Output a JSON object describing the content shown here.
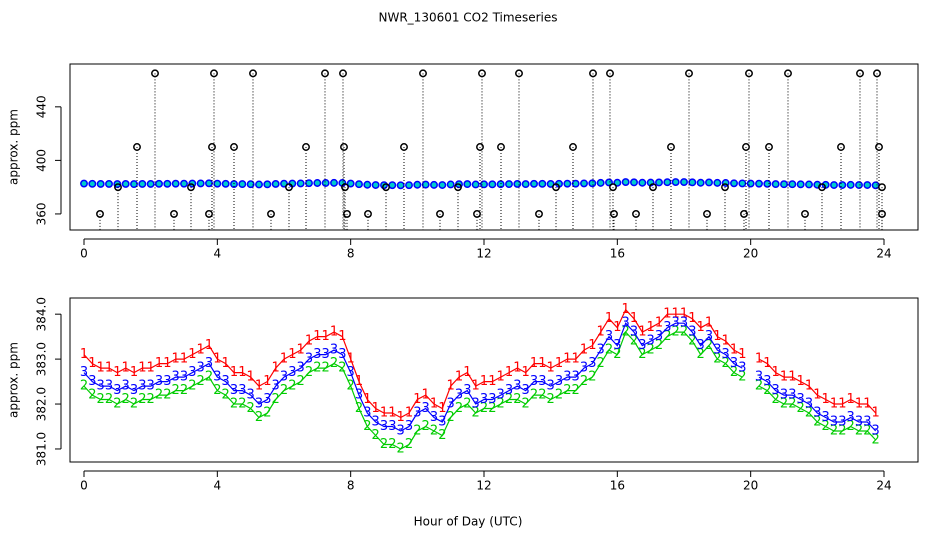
{
  "chart_data": [
    {
      "type": "scatter",
      "title": "NWR_130601  CO2 Timeseries",
      "y_label": "approx. ppm",
      "xlim": [
        -0.42,
        25.02
      ],
      "xticks": [
        0,
        4,
        8,
        12,
        16,
        20,
        24
      ],
      "ylim": [
        348,
        472
      ],
      "yticks": [
        360,
        400,
        440
      ],
      "series": [
        {
          "color": "#0000ff",
          "inner_color": "#00cccc",
          "x": [
            0,
            0.25,
            0.5,
            0.75,
            1,
            1.25,
            1.5,
            1.75,
            2,
            2.25,
            2.5,
            2.75,
            3,
            3.25,
            3.5,
            3.75,
            4,
            4.25,
            4.5,
            4.75,
            5,
            5.25,
            5.5,
            5.75,
            6,
            6.25,
            6.5,
            6.75,
            7,
            7.25,
            7.5,
            7.75,
            8,
            8.25,
            8.5,
            8.75,
            9,
            9.25,
            9.5,
            9.75,
            10,
            10.25,
            10.5,
            10.75,
            11,
            11.25,
            11.5,
            11.75,
            12,
            12.25,
            12.5,
            12.75,
            13,
            13.25,
            13.5,
            13.75,
            14,
            14.25,
            14.5,
            14.75,
            15,
            15.25,
            15.5,
            15.75,
            16,
            16.25,
            16.5,
            16.75,
            17,
            17.25,
            17.5,
            17.75,
            18,
            18.25,
            18.5,
            18.75,
            19,
            19.25,
            19.5,
            19.75,
            20,
            20.25,
            20.5,
            20.75,
            21,
            21.25,
            21.5,
            21.75,
            22,
            22.25,
            22.5,
            22.75,
            23,
            23.25,
            23.5,
            23.75
          ],
          "values": [
            382.7,
            382.5,
            382.4,
            382.4,
            382.3,
            382.4,
            382.3,
            382.4,
            382.4,
            382.5,
            382.5,
            382.6,
            382.6,
            382.7,
            382.8,
            382.9,
            382.6,
            382.5,
            382.3,
            382.3,
            382.2,
            382.0,
            382.1,
            382.4,
            382.6,
            382.7,
            382.8,
            383.0,
            383.1,
            383.1,
            383.2,
            383.1,
            382.7,
            382.2,
            381.8,
            381.6,
            381.5,
            381.5,
            381.4,
            381.5,
            381.8,
            381.9,
            381.7,
            381.6,
            382.0,
            382.2,
            382.3,
            382.0,
            382.1,
            382.1,
            382.2,
            382.3,
            382.4,
            382.3,
            382.5,
            382.5,
            382.4,
            382.5,
            382.6,
            382.6,
            382.8,
            382.9,
            383.2,
            383.5,
            383.3,
            383.8,
            383.6,
            383.3,
            383.4,
            383.5,
            383.7,
            383.8,
            383.8,
            383.6,
            383.3,
            383.5,
            383.2,
            383.1,
            382.9,
            382.8,
            382.7,
            382.6,
            382.5,
            382.3,
            382.2,
            382.2,
            382.1,
            382.0,
            381.8,
            381.7,
            381.6,
            381.6,
            381.7,
            381.6,
            381.6,
            381.4
          ]
        },
        {
          "color": "#000000",
          "drop_lines": true,
          "x": [
            2.13,
            3.9,
            5.07,
            7.23,
            7.77,
            10.17,
            11.94,
            13.05,
            15.27,
            15.78,
            18.15,
            19.95,
            21.12,
            23.28,
            23.79,
            1.59,
            3.84,
            4.5,
            6.66,
            7.8,
            9.6,
            11.88,
            12.51,
            14.67,
            17.61,
            19.86,
            20.55,
            22.71,
            23.85,
            0.48,
            2.7,
            3.75,
            5.61,
            7.89,
            8.52,
            10.68,
            11.79,
            13.65,
            15.9,
            16.56,
            18.69,
            19.8,
            21.63,
            23.94,
            1.02,
            3.21,
            6.15,
            7.83,
            9.06,
            11.22,
            14.16,
            15.87,
            17.07,
            19.23,
            22.14,
            23.94
          ],
          "values": [
            465,
            465,
            465,
            465,
            465,
            465,
            465,
            465,
            465,
            465,
            465,
            465,
            465,
            465,
            465,
            410,
            410,
            410,
            410,
            410,
            410,
            410,
            410,
            410,
            410,
            410,
            410,
            410,
            410,
            360,
            360,
            360,
            360,
            360,
            360,
            360,
            360,
            360,
            360,
            360,
            360,
            360,
            360,
            360,
            380,
            380,
            380,
            380,
            380,
            380,
            380,
            380,
            380,
            380,
            380,
            380
          ]
        }
      ]
    },
    {
      "type": "line",
      "y_label": "approx. ppm",
      "x_label": "Hour of Day (UTC)",
      "xlim": [
        -0.42,
        25.02
      ],
      "xticks": [
        0,
        4,
        8,
        12,
        16,
        20,
        24
      ],
      "ylim": [
        380.71,
        384.36
      ],
      "yticks": [
        {
          "value": 381,
          "label": "381.0"
        },
        {
          "value": 382,
          "label": "382.0"
        },
        {
          "value": 383,
          "label": "383.0"
        },
        {
          "value": 384,
          "label": "384.0"
        }
      ],
      "x": [
        0,
        0.25,
        0.5,
        0.75,
        1,
        1.25,
        1.5,
        1.75,
        2,
        2.25,
        2.5,
        2.75,
        3,
        3.25,
        3.5,
        3.75,
        4,
        4.25,
        4.5,
        4.75,
        5,
        5.25,
        5.5,
        5.75,
        6,
        6.25,
        6.5,
        6.75,
        7,
        7.25,
        7.5,
        7.75,
        8,
        8.25,
        8.5,
        8.75,
        9,
        9.25,
        9.5,
        9.75,
        10,
        10.25,
        10.5,
        10.75,
        11,
        11.25,
        11.5,
        11.75,
        12,
        12.25,
        12.5,
        12.75,
        13,
        13.25,
        13.5,
        13.75,
        14,
        14.25,
        14.5,
        14.75,
        15,
        15.25,
        15.5,
        15.75,
        16,
        16.25,
        16.5,
        16.75,
        17,
        17.25,
        17.5,
        17.75,
        18,
        18.25,
        18.5,
        18.75,
        19,
        19.25,
        19.5,
        19.75,
        20,
        20.25,
        20.5,
        20.75,
        21,
        21.25,
        21.5,
        21.75,
        22,
        22.25,
        22.5,
        22.75,
        23,
        23.25,
        23.5,
        23.75
      ],
      "series": [
        {
          "name": "1",
          "color": "#ff0000",
          "values": [
            383.1,
            382.9,
            382.8,
            382.8,
            382.7,
            382.8,
            382.7,
            382.8,
            382.8,
            382.9,
            382.9,
            383.0,
            383.0,
            383.1,
            383.2,
            383.3,
            383.0,
            382.9,
            382.7,
            382.7,
            382.6,
            382.4,
            382.5,
            382.8,
            383.0,
            383.1,
            383.2,
            383.4,
            383.5,
            383.5,
            383.6,
            383.5,
            383.0,
            382.5,
            382.1,
            381.9,
            381.8,
            381.8,
            381.7,
            381.8,
            382.1,
            382.2,
            382.0,
            381.9,
            382.4,
            382.6,
            382.7,
            382.4,
            382.5,
            382.5,
            382.6,
            382.7,
            382.8,
            382.7,
            382.9,
            382.9,
            382.8,
            382.9,
            383.0,
            383.0,
            383.2,
            383.3,
            383.6,
            383.9,
            383.7,
            384.1,
            383.9,
            383.6,
            383.7,
            383.8,
            384.0,
            384.0,
            384.0,
            383.9,
            383.7,
            383.8,
            383.5,
            383.4,
            383.2,
            383.1,
            null,
            383.0,
            382.9,
            382.7,
            382.6,
            382.6,
            382.5,
            382.4,
            382.2,
            382.1,
            382.0,
            382.0,
            382.1,
            382.0,
            382.0,
            381.8
          ]
        },
        {
          "name": "2",
          "color": "#00cc00",
          "values": [
            382.4,
            382.2,
            382.1,
            382.1,
            382.0,
            382.1,
            382.0,
            382.1,
            382.1,
            382.2,
            382.2,
            382.3,
            382.3,
            382.4,
            382.5,
            382.6,
            382.3,
            382.2,
            382.0,
            382.0,
            381.9,
            381.7,
            381.8,
            382.1,
            382.3,
            382.4,
            382.5,
            382.7,
            382.8,
            382.8,
            382.9,
            382.8,
            382.4,
            381.9,
            381.5,
            381.3,
            381.1,
            381.1,
            381.0,
            381.1,
            381.4,
            381.5,
            381.4,
            381.3,
            381.7,
            381.9,
            382.0,
            381.8,
            381.9,
            381.9,
            382.0,
            382.1,
            382.1,
            382.0,
            382.2,
            382.2,
            382.1,
            382.2,
            382.3,
            382.3,
            382.5,
            382.6,
            382.9,
            383.2,
            383.1,
            383.6,
            383.4,
            383.1,
            383.2,
            383.3,
            383.5,
            383.6,
            383.6,
            383.4,
            383.1,
            383.3,
            383.0,
            382.9,
            382.7,
            382.6,
            null,
            382.4,
            382.3,
            382.1,
            382.0,
            382.0,
            381.9,
            381.8,
            381.6,
            381.5,
            381.4,
            381.4,
            381.5,
            381.4,
            381.4,
            381.2
          ]
        },
        {
          "name": "3",
          "color": "#0000ff",
          "values": [
            382.7,
            382.5,
            382.4,
            382.4,
            382.3,
            382.4,
            382.3,
            382.4,
            382.4,
            382.5,
            382.5,
            382.6,
            382.6,
            382.7,
            382.8,
            382.9,
            382.6,
            382.5,
            382.3,
            382.3,
            382.2,
            382.0,
            382.1,
            382.4,
            382.6,
            382.7,
            382.8,
            383.0,
            383.1,
            383.1,
            383.2,
            383.1,
            382.7,
            382.2,
            381.8,
            381.6,
            381.5,
            381.5,
            381.4,
            381.5,
            381.8,
            381.9,
            381.7,
            381.6,
            382.0,
            382.2,
            382.3,
            382.0,
            382.1,
            382.1,
            382.2,
            382.3,
            382.4,
            382.3,
            382.5,
            382.5,
            382.4,
            382.5,
            382.6,
            382.6,
            382.8,
            382.9,
            383.2,
            383.5,
            383.3,
            383.8,
            383.6,
            383.3,
            383.4,
            383.5,
            383.7,
            383.8,
            383.8,
            383.6,
            383.3,
            383.5,
            383.2,
            383.1,
            382.9,
            382.8,
            null,
            382.6,
            382.5,
            382.3,
            382.2,
            382.2,
            382.1,
            382.0,
            381.8,
            381.7,
            381.6,
            381.6,
            381.7,
            381.6,
            381.6,
            381.4
          ]
        }
      ]
    }
  ]
}
